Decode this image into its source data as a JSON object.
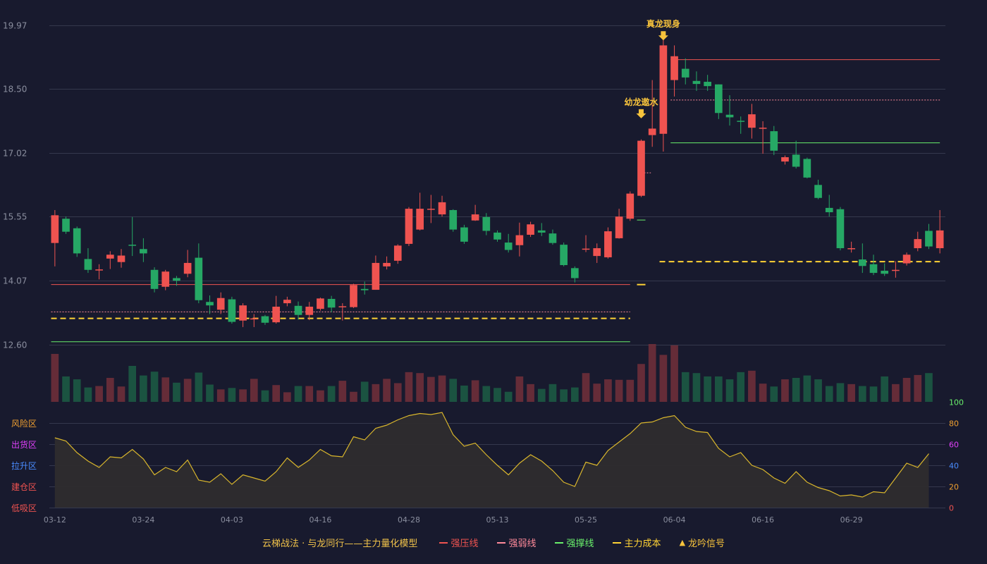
{
  "chart_data": {
    "type": "candlestick",
    "price_axis": {
      "ticks": [
        12.6,
        14.07,
        15.55,
        17.02,
        18.5,
        19.97
      ],
      "ylim": [
        12.6,
        19.97
      ]
    },
    "date_ticks": [
      {
        "i": 0,
        "label": "03-12"
      },
      {
        "i": 8,
        "label": "03-24"
      },
      {
        "i": 16,
        "label": "04-03"
      },
      {
        "i": 24,
        "label": "04-16"
      },
      {
        "i": 32,
        "label": "04-28"
      },
      {
        "i": 40,
        "label": "05-13"
      },
      {
        "i": 48,
        "label": "05-25"
      },
      {
        "i": 56,
        "label": "06-04"
      },
      {
        "i": 64,
        "label": "06-16"
      },
      {
        "i": 72,
        "label": "06-29"
      }
    ],
    "candles": [
      [
        14.94,
        15.58,
        14.4,
        15.7
      ],
      [
        15.5,
        15.2,
        15.15,
        15.55
      ],
      [
        15.28,
        14.7,
        14.62,
        15.32
      ],
      [
        14.57,
        14.32,
        14.25,
        14.82
      ],
      [
        14.32,
        14.33,
        14.1,
        14.45
      ],
      [
        14.58,
        14.67,
        14.34,
        14.75
      ],
      [
        14.5,
        14.65,
        14.37,
        14.8
      ],
      [
        14.9,
        14.88,
        14.64,
        15.54
      ],
      [
        14.8,
        14.7,
        14.5,
        15.05
      ],
      [
        14.32,
        13.88,
        13.8,
        14.38
      ],
      [
        13.93,
        14.28,
        13.85,
        14.32
      ],
      [
        14.13,
        14.07,
        13.95,
        14.18
      ],
      [
        14.23,
        14.48,
        14.15,
        14.78
      ],
      [
        14.6,
        13.62,
        13.55,
        14.93
      ],
      [
        13.58,
        13.5,
        13.3,
        13.73
      ],
      [
        13.4,
        13.67,
        13.3,
        13.8
      ],
      [
        13.64,
        13.12,
        13.08,
        13.7
      ],
      [
        13.15,
        13.5,
        13.0,
        13.55
      ],
      [
        13.2,
        13.2,
        13.0,
        13.3
      ],
      [
        13.25,
        13.1,
        13.05,
        13.28
      ],
      [
        13.11,
        13.47,
        13.08,
        13.72
      ],
      [
        13.55,
        13.63,
        13.48,
        13.7
      ],
      [
        13.49,
        13.28,
        13.17,
        13.59
      ],
      [
        13.28,
        13.47,
        13.16,
        13.58
      ],
      [
        13.42,
        13.66,
        13.38,
        13.68
      ],
      [
        13.65,
        13.45,
        13.34,
        13.72
      ],
      [
        13.47,
        13.48,
        13.15,
        13.55
      ],
      [
        13.46,
        13.97,
        13.44,
        14.0
      ],
      [
        13.88,
        13.85,
        13.75,
        14.05
      ],
      [
        13.86,
        14.48,
        13.86,
        14.65
      ],
      [
        14.4,
        14.48,
        14.33,
        14.63
      ],
      [
        14.53,
        14.88,
        14.46,
        14.91
      ],
      [
        14.92,
        15.73,
        14.87,
        15.77
      ],
      [
        15.25,
        15.73,
        15.23,
        16.1
      ],
      [
        15.72,
        15.73,
        15.4,
        16.05
      ],
      [
        15.6,
        15.88,
        15.55,
        16.03
      ],
      [
        15.7,
        15.25,
        15.2,
        15.72
      ],
      [
        15.3,
        14.97,
        14.92,
        15.36
      ],
      [
        15.46,
        15.6,
        15.45,
        15.82
      ],
      [
        15.54,
        15.22,
        15.12,
        15.63
      ],
      [
        15.18,
        15.02,
        14.97,
        15.23
      ],
      [
        14.95,
        14.78,
        14.72,
        15.15
      ],
      [
        14.89,
        15.12,
        14.63,
        15.41
      ],
      [
        15.13,
        15.37,
        15.08,
        15.43
      ],
      [
        15.23,
        15.18,
        15.1,
        15.4
      ],
      [
        15.16,
        14.94,
        14.9,
        15.25
      ],
      [
        14.9,
        14.43,
        14.4,
        14.95
      ],
      [
        14.36,
        14.13,
        14.03,
        14.4
      ],
      [
        14.81,
        14.81,
        14.73,
        15.12
      ],
      [
        14.64,
        14.82,
        14.48,
        14.93
      ],
      [
        14.61,
        15.21,
        14.58,
        15.3
      ],
      [
        15.05,
        15.55,
        15.04,
        15.73
      ],
      [
        15.5,
        16.08,
        15.45,
        16.13
      ],
      [
        16.03,
        17.3,
        16.0,
        17.33
      ],
      [
        17.43,
        17.58,
        17.16,
        18.7
      ],
      [
        17.46,
        19.5,
        17.05,
        19.65
      ],
      [
        18.7,
        19.25,
        18.32,
        19.5
      ],
      [
        18.96,
        18.76,
        18.6,
        19.2
      ],
      [
        18.68,
        18.61,
        18.45,
        18.9
      ],
      [
        18.66,
        18.56,
        18.45,
        18.82
      ],
      [
        18.6,
        17.94,
        17.8,
        18.6
      ],
      [
        17.9,
        17.84,
        17.65,
        18.35
      ],
      [
        17.76,
        17.75,
        17.46,
        17.86
      ],
      [
        17.6,
        17.91,
        17.35,
        18.15
      ],
      [
        17.6,
        17.6,
        17.0,
        17.75
      ],
      [
        17.52,
        17.07,
        16.97,
        17.64
      ],
      [
        16.82,
        16.92,
        16.75,
        16.96
      ],
      [
        16.98,
        16.7,
        16.66,
        17.3
      ],
      [
        16.88,
        16.45,
        16.43,
        16.91
      ],
      [
        16.28,
        15.98,
        15.95,
        16.4
      ],
      [
        15.75,
        15.65,
        15.55,
        16.05
      ],
      [
        15.72,
        14.82,
        14.77,
        15.77
      ],
      [
        14.82,
        14.82,
        14.72,
        14.97
      ],
      [
        14.56,
        14.41,
        14.25,
        14.93
      ],
      [
        14.45,
        14.25,
        14.2,
        14.67
      ],
      [
        14.3,
        14.23,
        14.18,
        14.47
      ],
      [
        14.3,
        14.32,
        14.14,
        14.52
      ],
      [
        14.47,
        14.67,
        14.42,
        14.72
      ],
      [
        14.82,
        15.03,
        14.75,
        15.2
      ],
      [
        15.22,
        14.86,
        14.8,
        15.38
      ],
      [
        14.82,
        15.23,
        14.7,
        15.7
      ]
    ],
    "volumes": [
      1.0,
      0.53,
      0.47,
      0.3,
      0.33,
      0.5,
      0.32,
      0.75,
      0.55,
      0.63,
      0.51,
      0.4,
      0.48,
      0.61,
      0.36,
      0.26,
      0.29,
      0.26,
      0.48,
      0.24,
      0.35,
      0.2,
      0.33,
      0.33,
      0.24,
      0.33,
      0.44,
      0.21,
      0.42,
      0.37,
      0.48,
      0.39,
      0.62,
      0.6,
      0.52,
      0.55,
      0.48,
      0.34,
      0.45,
      0.33,
      0.29,
      0.21,
      0.53,
      0.37,
      0.27,
      0.37,
      0.26,
      0.3,
      0.6,
      0.38,
      0.47,
      0.46,
      0.46,
      0.79,
      1.22,
      0.98,
      1.18,
      0.62,
      0.6,
      0.53,
      0.53,
      0.47,
      0.62,
      0.65,
      0.38,
      0.32,
      0.47,
      0.5,
      0.55,
      0.47,
      0.33,
      0.39,
      0.37,
      0.33,
      0.32,
      0.53,
      0.37,
      0.5,
      0.56,
      0.6
    ],
    "indicator": {
      "axis_ticks": [
        0,
        20,
        40,
        60,
        80,
        100
      ],
      "zones": [
        "风险区",
        "出货区",
        "拉升区",
        "建仓区",
        "低吸区"
      ],
      "values": [
        66,
        63,
        52,
        44,
        38,
        48,
        47,
        55,
        46,
        31,
        38,
        34,
        45,
        26,
        24,
        32,
        22,
        31,
        28,
        25,
        34,
        47,
        38,
        45,
        55,
        49,
        48,
        67,
        64,
        75,
        78,
        83,
        87,
        89,
        88,
        90,
        69,
        58,
        61,
        50,
        40,
        31,
        42,
        50,
        44,
        35,
        24,
        20,
        43,
        40,
        54,
        62,
        70,
        80,
        81,
        85,
        87,
        76,
        72,
        71,
        56,
        48,
        52,
        40,
        36,
        28,
        23,
        34,
        24,
        19,
        16,
        11,
        12,
        10,
        15,
        14,
        28,
        42,
        38,
        51
      ]
    },
    "lines": {
      "strong_pressure": [
        {
          "from": 0,
          "to": 52,
          "y": 13.98
        },
        {
          "from": 56,
          "to": 80,
          "y": 19.17
        }
      ],
      "strong_weak": [
        {
          "from": 0,
          "to": 52,
          "y": 13.35
        },
        {
          "from": 56,
          "to": 80,
          "y": 18.24
        }
      ],
      "strong_support": [
        {
          "from": 0,
          "to": 52,
          "y": 12.66
        },
        {
          "from": 56,
          "to": 80,
          "y": 17.25
        }
      ],
      "main_cost": [
        {
          "from": 0,
          "to": 52,
          "y": 13.2
        },
        {
          "from": 55,
          "to": 80,
          "y": 14.51
        }
      ]
    },
    "signals": [
      {
        "i": 53,
        "label": "幼龙遨水",
        "y": 17.8
      },
      {
        "i": 55,
        "label": "真龙现身",
        "y": 19.6
      }
    ],
    "legend": [
      {
        "label": "强压线",
        "color": "#ef5350",
        "style": "solid"
      },
      {
        "label": "强弱线",
        "color": "#ff8a9a",
        "style": "dash"
      },
      {
        "label": "强撑线",
        "color": "#69f06b",
        "style": "solid"
      },
      {
        "label": "主力成本",
        "color": "#ffd335",
        "style": "dash"
      },
      {
        "label": "龙吟信号",
        "color": "#f7c33c",
        "style": "triangle"
      }
    ],
    "legend_title": "云梯战法 · 与龙同行——主力量化模型",
    "colors": {
      "up": "#ef5350",
      "down": "#26a865",
      "grid": "#35384d",
      "axis_text": "#8a8e9e",
      "indicator_line": "#d9b62c",
      "indicator_fill": "#2e2c2e",
      "signal": "#f7c33c"
    }
  }
}
